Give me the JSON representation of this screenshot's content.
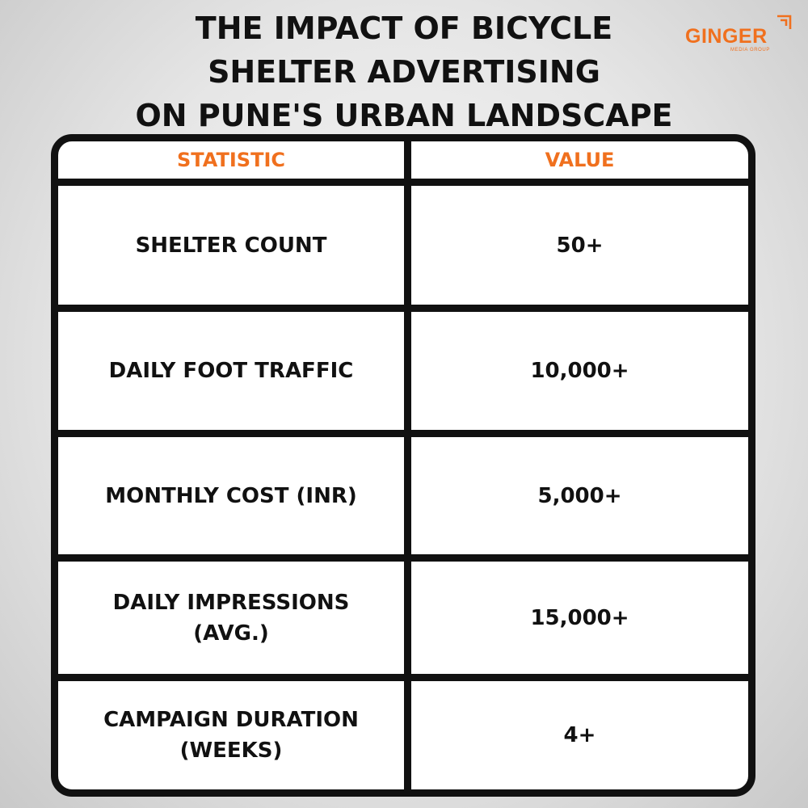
{
  "title": {
    "line1": "THE IMPACT OF BICYCLE",
    "line2": "SHELTER ADVERTISING",
    "line3": "ON PUNE'S URBAN LANDSCAPE"
  },
  "logo": {
    "name": "GINGER",
    "tagline": "MEDIA GROUP",
    "icon": "ginger-logo-mark-icon"
  },
  "colors": {
    "accent": "#f0701e",
    "text": "#111111",
    "border": "#111111"
  },
  "table": {
    "headers": {
      "statistic": "STATISTIC",
      "value": "VALUE"
    },
    "rows": [
      {
        "statistic": "SHELTER COUNT",
        "value": "50+"
      },
      {
        "statistic": "DAILY FOOT TRAFFIC",
        "value": "10,000+"
      },
      {
        "statistic": "MONTHLY COST (INR)",
        "value": "5,000+"
      },
      {
        "statistic": "DAILY IMPRESSIONS (AVG.)",
        "value": "15,000+"
      },
      {
        "statistic": "CAMPAIGN DURATION (WEEKS)",
        "value": "4+"
      }
    ]
  }
}
